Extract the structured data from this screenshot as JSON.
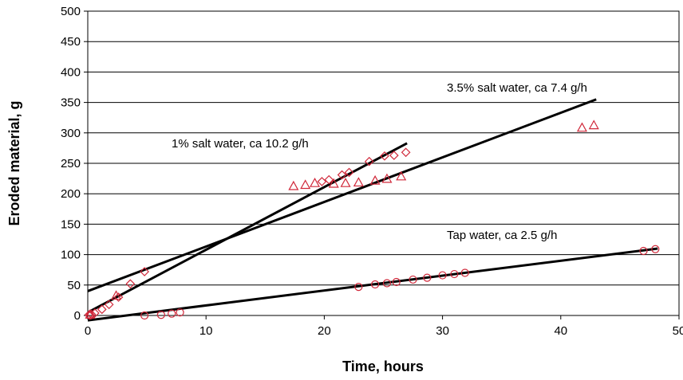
{
  "chart_data": {
    "type": "scatter",
    "title": "",
    "xlabel": "Time, hours",
    "ylabel": "Eroded material, g",
    "xlim": [
      0,
      50
    ],
    "ylim": [
      0,
      500
    ],
    "xticks": [
      0,
      10,
      20,
      30,
      40,
      50
    ],
    "yticks": [
      0,
      50,
      100,
      150,
      200,
      250,
      300,
      350,
      400,
      450,
      500
    ],
    "grid": "horizontal",
    "legend": "none",
    "marker_color": "#d0283a",
    "line_color": "#000000",
    "series": [
      {
        "marker": "diamond",
        "points": [
          [
            0.1,
            1
          ],
          [
            0.3,
            2
          ],
          [
            0.6,
            4
          ],
          [
            1.2,
            10
          ],
          [
            1.8,
            18
          ],
          [
            2.6,
            30
          ],
          [
            3.6,
            52
          ],
          [
            4.8,
            72
          ],
          [
            19.8,
            220
          ],
          [
            20.4,
            223
          ],
          [
            21.5,
            231
          ],
          [
            22.1,
            235
          ],
          [
            23.8,
            253
          ],
          [
            25.1,
            262
          ],
          [
            25.9,
            263
          ],
          [
            26.9,
            268
          ]
        ]
      },
      {
        "marker": "triangle",
        "points": [
          [
            0.2,
            1
          ],
          [
            2.4,
            32
          ],
          [
            17.4,
            212
          ],
          [
            18.4,
            214
          ],
          [
            19.2,
            217
          ],
          [
            20.8,
            216
          ],
          [
            21.8,
            217
          ],
          [
            22.9,
            218
          ],
          [
            24.3,
            221
          ],
          [
            25.3,
            224
          ],
          [
            26.5,
            228
          ],
          [
            41.8,
            308
          ],
          [
            42.8,
            312
          ]
        ]
      },
      {
        "marker": "circle",
        "points": [
          [
            0.2,
            0
          ],
          [
            4.8,
            0
          ],
          [
            6.2,
            1
          ],
          [
            7.1,
            3
          ],
          [
            7.8,
            5
          ],
          [
            22.9,
            47
          ],
          [
            24.3,
            51
          ],
          [
            25.3,
            53
          ],
          [
            26.1,
            55
          ],
          [
            27.5,
            59
          ],
          [
            28.7,
            62
          ],
          [
            30.0,
            66
          ],
          [
            31.0,
            68
          ],
          [
            31.9,
            70
          ],
          [
            47.0,
            106
          ],
          [
            48.0,
            109
          ]
        ]
      }
    ],
    "trendlines": [
      {
        "label": "1% salt water, ca 10.2 g/h",
        "from": [
          0,
          5
        ],
        "to": [
          27,
          283
        ]
      },
      {
        "label": "3.5% salt water, ca 7.4 g/h",
        "from": [
          0,
          40
        ],
        "to": [
          43,
          355
        ]
      },
      {
        "label": "Tap water, ca 2.5 g/h",
        "from": [
          0,
          -8
        ],
        "to": [
          48.2,
          110
        ]
      }
    ]
  }
}
